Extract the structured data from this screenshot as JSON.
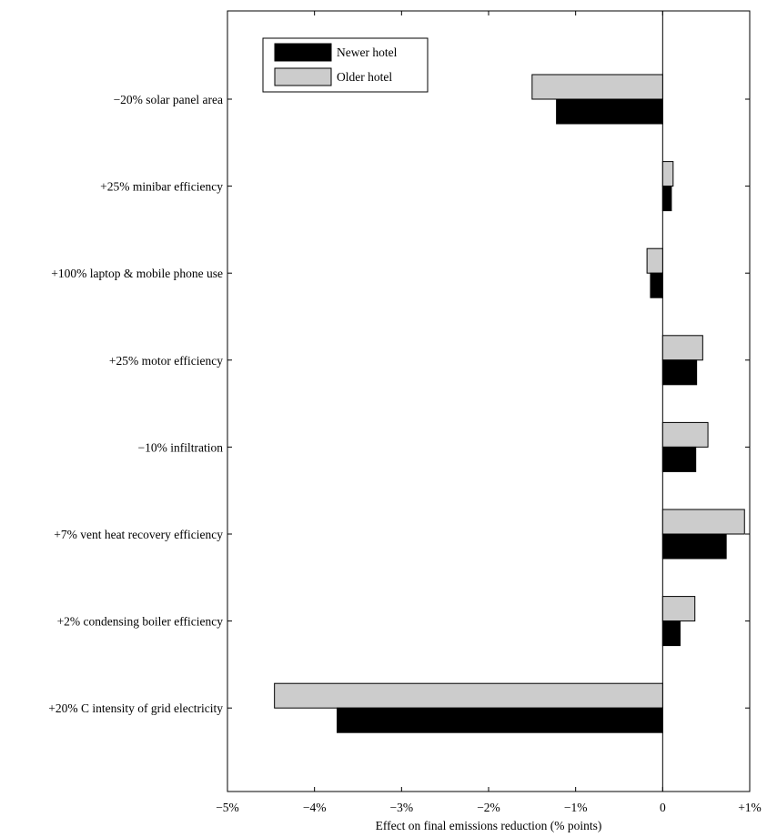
{
  "chart_data": {
    "type": "bar",
    "orientation": "horizontal",
    "categories": [
      "−20% solar panel area",
      "+25% minibar efficiency",
      "+100% laptop & mobile phone use",
      "+25% motor efficiency",
      "−10% infiltration",
      "+7% vent heat recovery efficiency",
      "+2% condensing boiler efficiency",
      "+20% C intensity of grid electricity"
    ],
    "series": [
      {
        "name": "Older hotel",
        "color": "#cccccc",
        "values": [
          -1.5,
          0.12,
          -0.18,
          0.46,
          0.52,
          0.94,
          0.37,
          -4.46
        ]
      },
      {
        "name": "Newer hotel",
        "color": "#000000",
        "values": [
          -1.22,
          0.1,
          -0.14,
          0.39,
          0.38,
          0.73,
          0.2,
          -3.74
        ]
      }
    ],
    "xlabel": "Effect on final emissions reduction (% points)",
    "ylabel": "",
    "title": "",
    "xlim": [
      -5,
      1
    ],
    "xticks": [
      -5,
      -4,
      -3,
      -2,
      -1,
      0,
      1
    ],
    "xtick_labels": [
      "−5%",
      "−4%",
      "−3%",
      "−2%",
      "−1%",
      "0",
      "+1%"
    ],
    "grid": false,
    "legend": {
      "position": "top-left",
      "entries": [
        {
          "label": "Newer hotel",
          "color": "#000000"
        },
        {
          "label": "Older hotel",
          "color": "#cccccc"
        }
      ]
    }
  }
}
